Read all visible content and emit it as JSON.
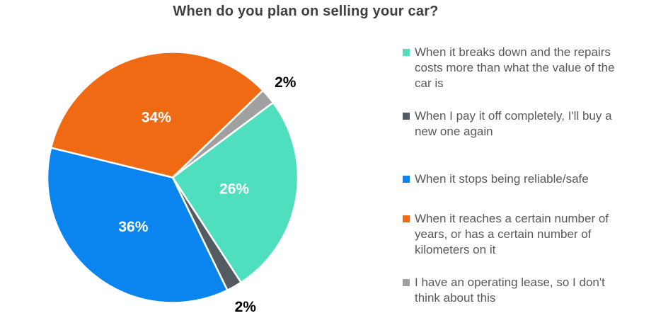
{
  "chart_data": {
    "type": "pie",
    "title": "When do you plan on selling your car?",
    "legend_position": "right",
    "start_angle_deg": 53.3,
    "direction": "clockwise",
    "grid": false,
    "slices": [
      {
        "label": "When it breaks down and the repairs costs more than what the value of the car is",
        "value": 26,
        "data_label": "26%",
        "color": "#4FDFBF",
        "data_label_color": "#ffffff",
        "label_placement": "inside"
      },
      {
        "label": "When I pay it off completely, I'll buy a new one again",
        "value": 2,
        "data_label": "2%",
        "color": "#535A62",
        "data_label_color": "#000000",
        "label_placement": "outside"
      },
      {
        "label": "When it stops being reliable/safe",
        "value": 36,
        "data_label": "36%",
        "color": "#0A84EE",
        "data_label_color": "#ffffff",
        "label_placement": "inside"
      },
      {
        "label": "When it reaches a certain number of years, or has a certain number of kilometers on it",
        "value": 34,
        "data_label": "34%",
        "color": "#EF6A13",
        "data_label_color": "#ffffff",
        "label_placement": "inside"
      },
      {
        "label": "I have an operating lease, so I don't think about this",
        "value": 2,
        "data_label": "2%",
        "color": "#A0A0A0",
        "data_label_color": "#000000",
        "label_placement": "outside"
      }
    ]
  }
}
